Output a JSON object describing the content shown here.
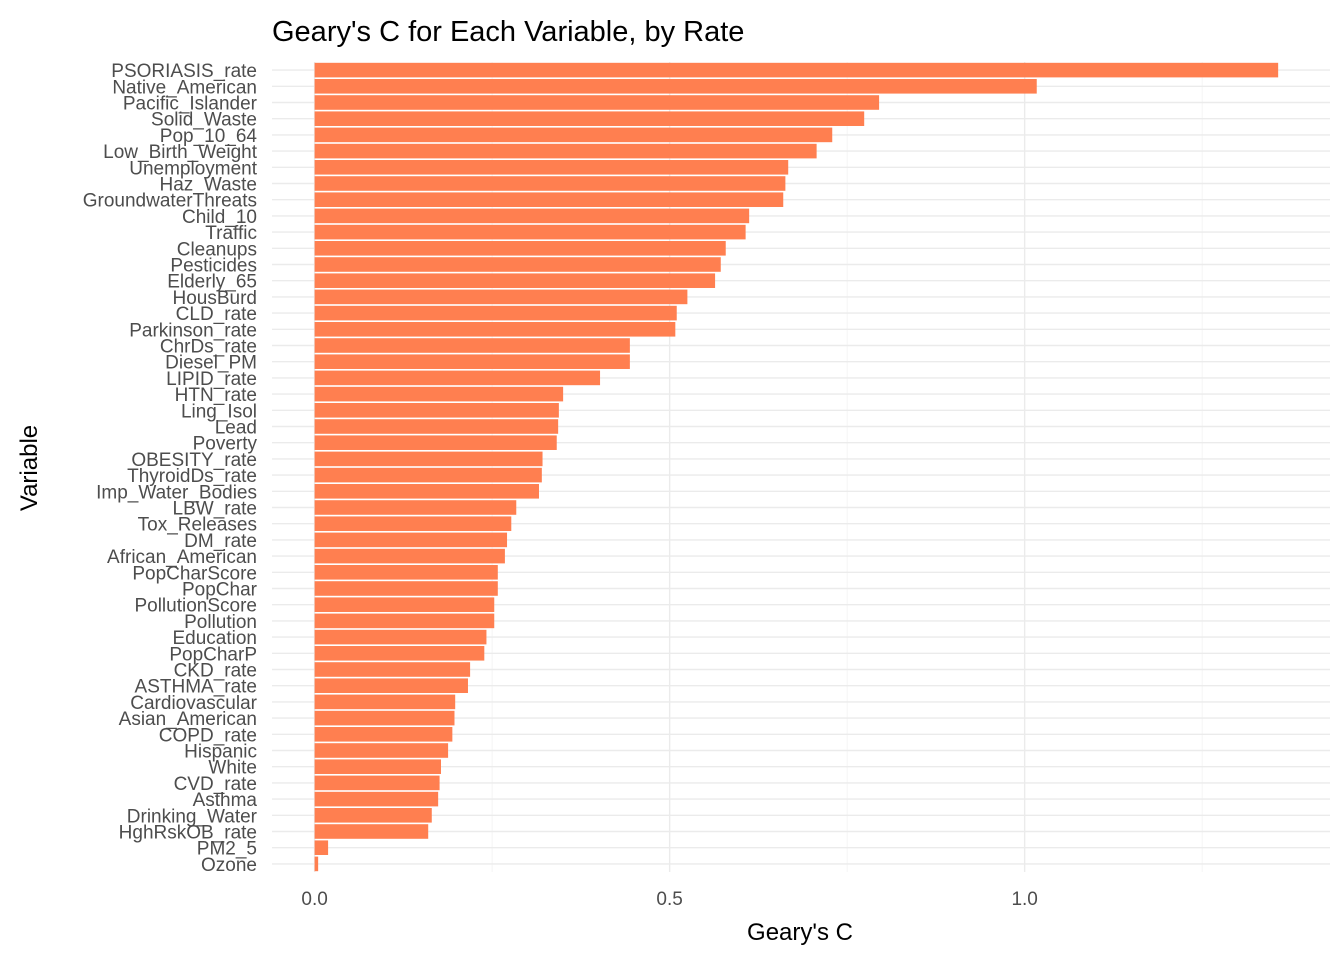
{
  "chart_data": {
    "type": "bar",
    "orientation": "horizontal",
    "title": "Geary's C for Each Variable, by Rate",
    "xlabel": "Geary's C",
    "ylabel": "Variable",
    "xlim": [
      -0.06,
      1.43
    ],
    "x_ticks": [
      "0.0",
      "0.5",
      "1.0"
    ],
    "x_tick_values": [
      0.0,
      0.5,
      1.0
    ],
    "x_minor_tick_values": [
      0.25,
      0.75,
      1.25
    ],
    "bar_color": "#FF7F50",
    "grid": true,
    "legend": "none",
    "categories": [
      "PSORIASIS_rate",
      "Native_American",
      "Pacific_Islander",
      "Solid_Waste",
      "Pop_10_64",
      "Low_Birth_Weight",
      "Unemployment",
      "Haz_Waste",
      "GroundwaterThreats",
      "Child_10",
      "Traffic",
      "Cleanups",
      "Pesticides",
      "Elderly_65",
      "HousBurd",
      "CLD_rate",
      "Parkinson_rate",
      "ChrDs_rate",
      "Diesel_PM",
      "LIPID_rate",
      "HTN_rate",
      "Ling_Isol",
      "Lead",
      "Poverty",
      "OBESITY_rate",
      "ThyroidDs_rate",
      "Imp_Water_Bodies",
      "LBW_rate",
      "Tox_Releases",
      "DM_rate",
      "African_American",
      "PopCharScore",
      "PopChar",
      "PollutionScore",
      "Pollution",
      "Education",
      "PopCharP",
      "CKD_rate",
      "ASTHMA_rate",
      "Cardiovascular",
      "Asian_American",
      "COPD_rate",
      "Hispanic",
      "White",
      "CVD_rate",
      "Asthma",
      "Drinking_Water",
      "HghRskOB_rate",
      "PM2_5",
      "Ozone"
    ],
    "values": [
      1.357,
      1.017,
      0.795,
      0.774,
      0.729,
      0.707,
      0.667,
      0.663,
      0.66,
      0.612,
      0.607,
      0.579,
      0.572,
      0.564,
      0.525,
      0.51,
      0.508,
      0.444,
      0.444,
      0.402,
      0.35,
      0.344,
      0.343,
      0.341,
      0.321,
      0.32,
      0.316,
      0.284,
      0.277,
      0.271,
      0.268,
      0.258,
      0.258,
      0.253,
      0.253,
      0.242,
      0.239,
      0.219,
      0.216,
      0.198,
      0.197,
      0.194,
      0.188,
      0.178,
      0.176,
      0.174,
      0.165,
      0.16,
      0.019,
      0.005
    ]
  }
}
